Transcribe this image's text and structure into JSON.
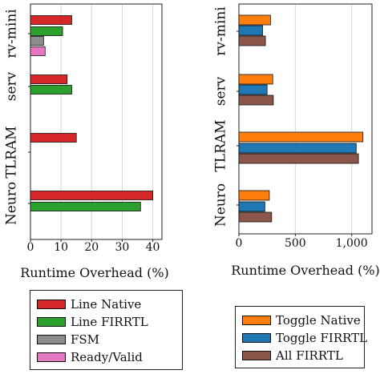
{
  "chart_data": [
    {
      "type": "bar",
      "orientation": "horizontal",
      "categories": [
        "rv-mini",
        "serv",
        "TLRAM",
        "Neuro"
      ],
      "xlabel": "Runtime Overhead (%)",
      "xlim": [
        0,
        43
      ],
      "xticks": [
        "0",
        "10",
        "20",
        "30",
        "40"
      ],
      "xtick_values": [
        0,
        10,
        20,
        30,
        40
      ],
      "grid": "vertical",
      "legend_position": "bottom",
      "series": [
        {
          "name": "Line Native",
          "color": "#d62728",
          "values": [
            13.5,
            12,
            15,
            40
          ]
        },
        {
          "name": "Line FIRRTL",
          "color": "#2ca02c",
          "values": [
            10.5,
            13.5,
            null,
            36
          ]
        },
        {
          "name": "FSM",
          "color": "#8c8c8c",
          "values": [
            4.3,
            null,
            null,
            null
          ]
        },
        {
          "name": "Ready/Valid",
          "color": "#e377c2",
          "values": [
            4.8,
            null,
            null,
            null
          ]
        }
      ]
    },
    {
      "type": "bar",
      "orientation": "horizontal",
      "categories": [
        "rv-mini",
        "serv",
        "TLRAM",
        "Neuro"
      ],
      "xlabel": "Runtime Overhead (%)",
      "xlim": [
        0,
        1180
      ],
      "xticks": [
        "0",
        "500",
        "1,000"
      ],
      "xtick_values": [
        0,
        500,
        1000
      ],
      "grid": "vertical",
      "legend_position": "bottom",
      "series": [
        {
          "name": "Toggle Native",
          "color": "#ff7f0e",
          "values": [
            280,
            300,
            1100,
            270
          ]
        },
        {
          "name": "Toggle FIRRTL",
          "color": "#1f77b4",
          "values": [
            210,
            250,
            1040,
            230
          ]
        },
        {
          "name": "All FIRRTL",
          "color": "#8c564b",
          "values": [
            235,
            305,
            1060,
            290
          ]
        }
      ]
    }
  ]
}
